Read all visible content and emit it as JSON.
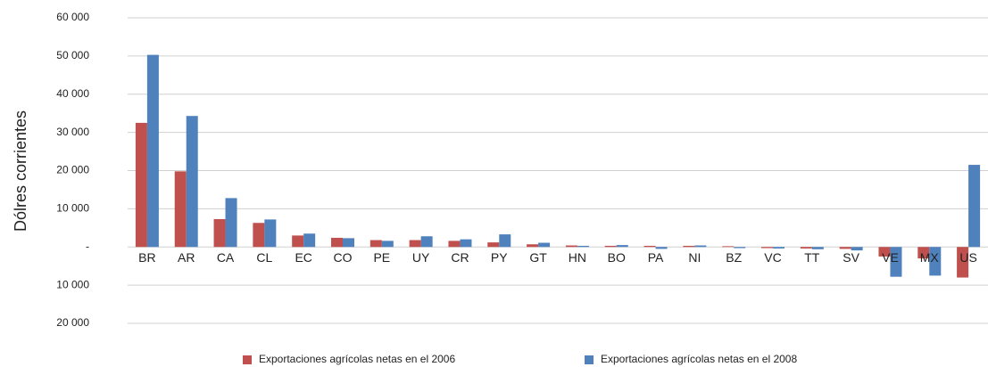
{
  "chart_data": {
    "type": "bar",
    "y_label": "Dólres corrientes",
    "categories": [
      "BR",
      "AR",
      "CA",
      "CL",
      "EC",
      "CO",
      "PE",
      "UY",
      "CR",
      "PY",
      "GT",
      "HN",
      "BO",
      "PA",
      "NI",
      "BZ",
      "VC",
      "TT",
      "SV",
      "VE",
      "MX",
      "US"
    ],
    "series": [
      {
        "name": "Exportaciones agrícolas netas en el 2006",
        "color": "#c0504d",
        "values": [
          32500,
          19800,
          7300,
          6300,
          3000,
          2400,
          1800,
          1800,
          1600,
          1200,
          700,
          400,
          300,
          300,
          300,
          200,
          -300,
          -400,
          -500,
          -2500,
          -3000,
          -8000
        ]
      },
      {
        "name": "Exportaciones agrícolas netas en el 2008",
        "color": "#4f81bd",
        "values": [
          50300,
          34300,
          12800,
          7200,
          3500,
          2300,
          1600,
          2800,
          2000,
          3300,
          1100,
          300,
          500,
          -500,
          400,
          -300,
          -400,
          -600,
          -900,
          -7800,
          -7500,
          21500
        ]
      }
    ],
    "ylim": [
      -20000,
      60000
    ],
    "yticks": [
      {
        "value": 60000,
        "label": "60 000"
      },
      {
        "value": 50000,
        "label": "50 000"
      },
      {
        "value": 40000,
        "label": "40 000"
      },
      {
        "value": 30000,
        "label": "30 000"
      },
      {
        "value": 20000,
        "label": "20 000"
      },
      {
        "value": 10000,
        "label": "10 000"
      },
      {
        "value": 0,
        "label": "-"
      },
      {
        "value": -10000,
        "label": "10 000"
      },
      {
        "value": -20000,
        "label": "20 000"
      }
    ],
    "grid": true,
    "legend": "bottom"
  }
}
